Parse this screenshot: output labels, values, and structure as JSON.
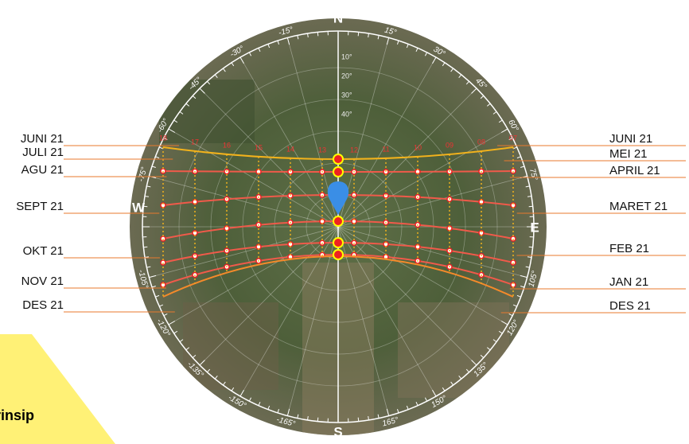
{
  "left_labels": [
    "JUNI 21",
    "JULI 21",
    "AGU 21",
    "SEPT 21",
    "OKT 21",
    "NOV 21",
    "DES 21"
  ],
  "right_labels": [
    "JUNI 21",
    "MEI 21",
    "APRIL 21",
    "MARET 21",
    "FEB 21",
    "JAN 21",
    "DES 21"
  ],
  "compass": {
    "north": "N",
    "east": "E",
    "south": "S",
    "west": "W"
  },
  "azimuth_labels": [
    "15°",
    "30°",
    "45°",
    "60°",
    "75°",
    "105°",
    "120°",
    "135°",
    "150°",
    "165°",
    "-165°",
    "-150°",
    "-135°",
    "-120°",
    "-105°",
    "-75°",
    "-60°",
    "-45°",
    "-30°",
    "-15°"
  ],
  "hour_labels": [
    "18",
    "17",
    "16",
    "15",
    "14",
    "13",
    "12",
    "11",
    "10",
    "09",
    "08",
    "07"
  ],
  "altitude_labels": [
    "10°",
    "20°",
    "30°",
    "40°"
  ],
  "footer_text": "rinsip"
}
